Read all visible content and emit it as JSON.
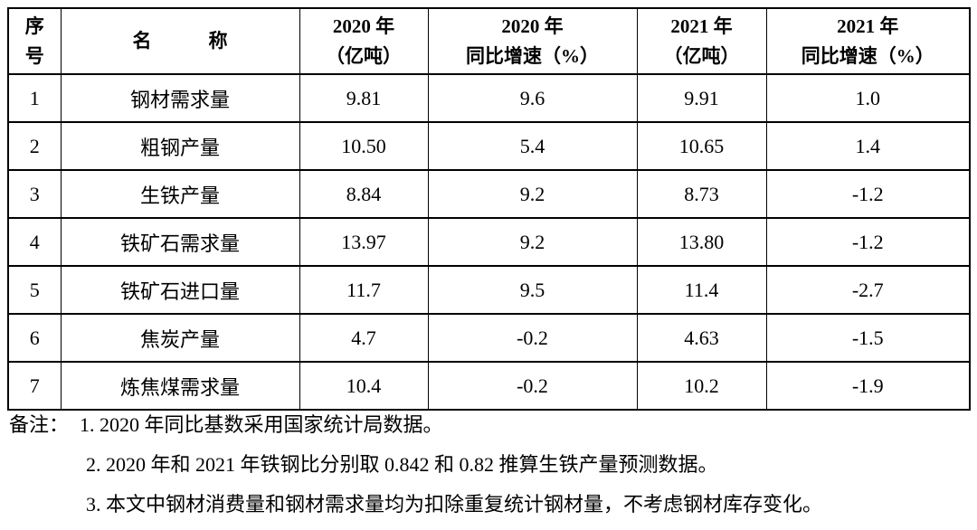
{
  "table": {
    "headers": [
      {
        "id": "index",
        "label": "序\n号"
      },
      {
        "id": "name",
        "label": "名　　　称"
      },
      {
        "id": "y2020",
        "label": "2020 年\n（亿吨）"
      },
      {
        "id": "g2020",
        "label": "2020 年\n同比增速（%）"
      },
      {
        "id": "y2021",
        "label": "2021 年\n（亿吨）"
      },
      {
        "id": "g2021",
        "label": "2021 年\n同比增速（%）"
      }
    ],
    "rows": [
      [
        "1",
        "钢材需求量",
        "9.81",
        "9.6",
        "9.91",
        "1.0"
      ],
      [
        "2",
        "粗钢产量",
        "10.50",
        "5.4",
        "10.65",
        "1.4"
      ],
      [
        "3",
        "生铁产量",
        "8.84",
        "9.2",
        "8.73",
        "-1.2"
      ],
      [
        "4",
        "铁矿石需求量",
        "13.97",
        "9.2",
        "13.80",
        "-1.2"
      ],
      [
        "5",
        "铁矿石进口量",
        "11.7",
        "9.5",
        "11.4",
        "-2.7"
      ],
      [
        "6",
        "焦炭产量",
        "4.7",
        "-0.2",
        "4.63",
        "-1.5"
      ],
      [
        "7",
        "炼焦煤需求量",
        "10.4",
        "-0.2",
        "10.2",
        "-1.9"
      ]
    ]
  },
  "notes": {
    "label": "备注：",
    "items": [
      "1. 2020 年同比基数采用国家统计局数据。",
      "2. 2020 年和 2021 年铁钢比分别取 0.842 和 0.82 推算生铁产量预测数据。",
      "3. 本文中钢材消费量和钢材需求量均为扣除重复统计钢材量，不考虑钢材库存变化。"
    ]
  }
}
